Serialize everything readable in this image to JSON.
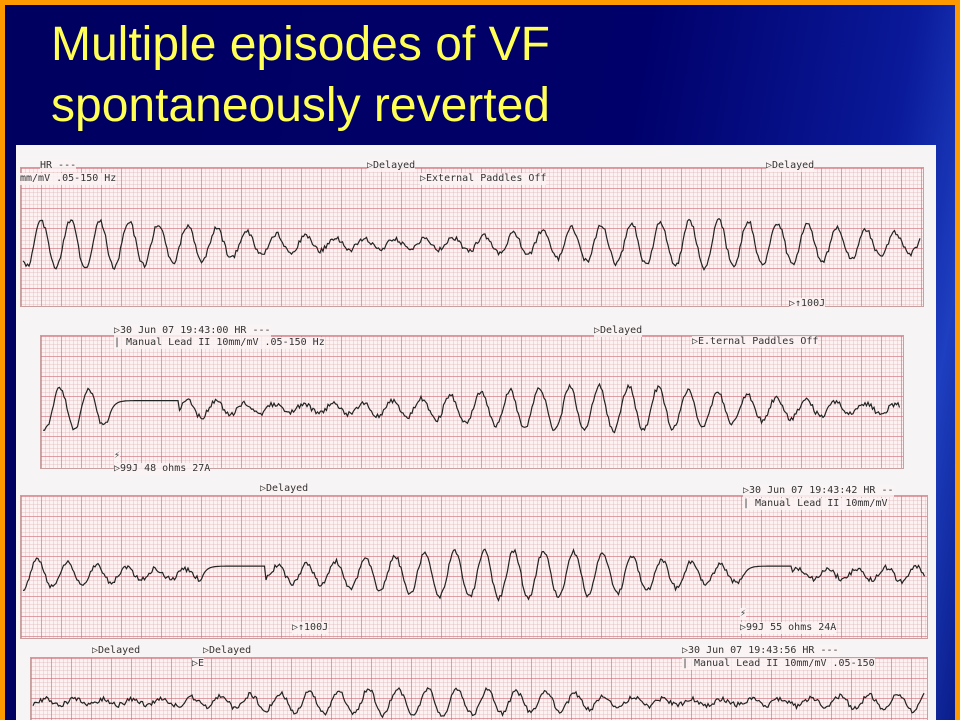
{
  "slide": {
    "title_line1": "Multiple episodes of VF",
    "title_line2": "spontaneously reverted"
  },
  "colors": {
    "border": "#ff9900",
    "background": "#000060",
    "title": "#ffff55",
    "trace": "#222222",
    "grid": "#d26e78"
  },
  "strips": [
    {
      "labels": {
        "hr": "HR ---",
        "settings": "mm/mV  .05-150 Hz",
        "delayed1": "▷Delayed",
        "paddles": "▷External Paddles Off",
        "delayed2": "▷Delayed",
        "shock": "▷↑100J"
      }
    },
    {
      "labels": {
        "timestamp": "▷30 Jun 07  19:43:00  HR ---",
        "settings": "| Manual  Lead II  10mm/mV  .05-150 Hz",
        "delayed": "▷Delayed",
        "paddles": "▷E.ternal Paddles Off",
        "shock_marker": "⚡",
        "shock": "▷99J 48 ohms 27A"
      }
    },
    {
      "labels": {
        "delayed": "▷Delayed",
        "timestamp": "▷30 Jun 07  19:43:42  HR --",
        "settings": "| Manual  Lead II  10mm/mV",
        "shock1": "▷↑100J",
        "shock_marker": "⚡",
        "shock2": "▷99J 55 ohms 24A"
      }
    },
    {
      "labels": {
        "delayed1": "▷Delayed",
        "delayed2": "▷Delayed",
        "event": "▷E",
        "timestamp": "▷30 Jun 07  19:43:56  HR ---",
        "settings": "| Manual  Lead II  10mm/mV  .05-150"
      }
    }
  ]
}
